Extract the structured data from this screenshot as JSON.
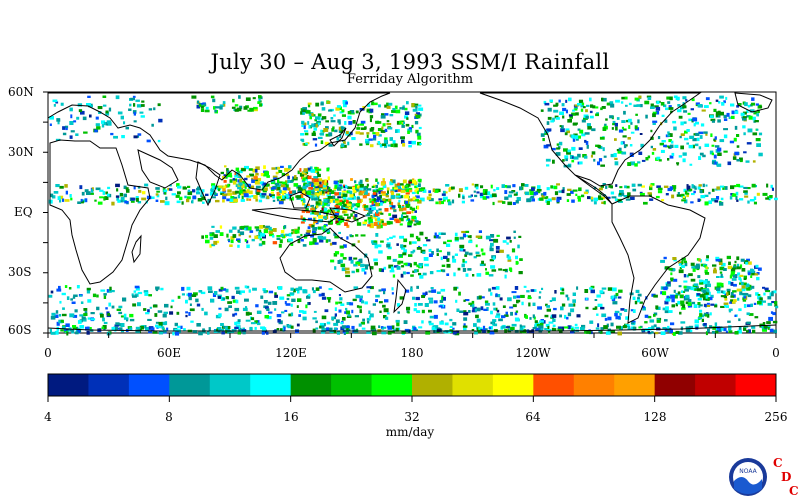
{
  "title": "July 30 – Aug 3, 1993 SSM/I Rainfall",
  "subtitle": "Ferriday Algorithm",
  "map": {
    "lat_labels": [
      "60N",
      "30N",
      "EQ",
      "30S",
      "60S"
    ],
    "lon_labels": [
      "0",
      "60E",
      "120E",
      "180",
      "120W",
      "60W",
      "0"
    ]
  },
  "colorbar": {
    "colors": [
      "#001a80",
      "#0030b8",
      "#0050ff",
      "#009898",
      "#00c8c8",
      "#00ffff",
      "#009000",
      "#00c000",
      "#00ff00",
      "#b0b000",
      "#e0e000",
      "#ffff00",
      "#ff5000",
      "#ff8000",
      "#ffa000",
      "#900000",
      "#c00000",
      "#ff0000"
    ],
    "tick_labels": [
      "4",
      "8",
      "16",
      "32",
      "64",
      "128",
      "256"
    ],
    "unit": "mm/day"
  },
  "logo": {
    "name": "NOAA",
    "letters": [
      "C",
      "D",
      "C"
    ],
    "letter_color": "#e00000"
  }
}
